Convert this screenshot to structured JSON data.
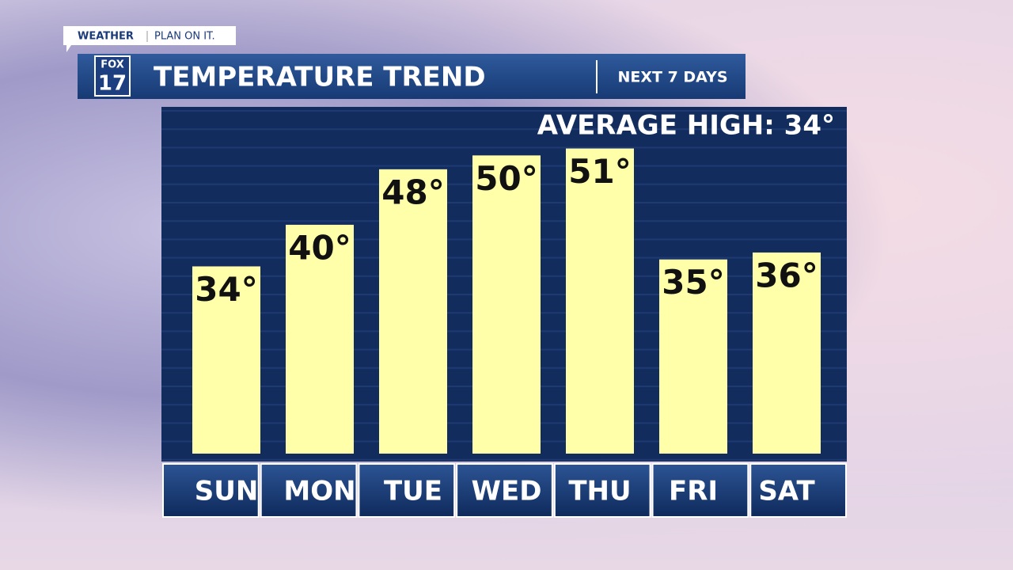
{
  "header": {
    "brand": "WEATHER",
    "tagline": "PLAN ON IT.",
    "logo_top": "FOX",
    "logo_bottom": "17"
  },
  "chart_data": {
    "type": "bar",
    "title": "TEMPERATURE TREND",
    "subtitle": "NEXT 7 DAYS",
    "annotation": "AVERAGE HIGH:  34°",
    "categories": [
      "SUN",
      "MON",
      "TUE",
      "WED",
      "THU",
      "FRI",
      "SAT"
    ],
    "values": [
      34,
      40,
      48,
      50,
      51,
      35,
      36
    ],
    "value_labels": [
      "34°",
      "40°",
      "48°",
      "50°",
      "51°",
      "35°",
      "36°"
    ],
    "color": "#ffffaa",
    "ylim": [
      7,
      57
    ]
  }
}
